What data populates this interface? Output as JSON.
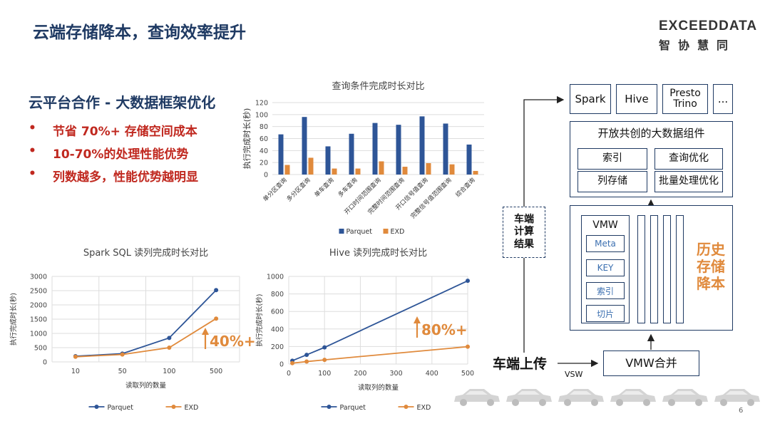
{
  "slide": {
    "title": "云端存储降本，查询效率提升",
    "logo_en": "EXCEEDDATA",
    "logo_cn": "智协慧同",
    "subtitle": "云平台合作 - 大数据框架优化",
    "bullets": [
      "节省 70%+ 存储空间成本",
      "10-70%的处理性能优势",
      "列数越多，性能优势越明显"
    ],
    "bullet_symbol": "•",
    "page_number": "6"
  },
  "chart_data": [
    {
      "type": "bar",
      "title": "查询条件完成时长对比",
      "ylabel": "执行完成时长(秒)",
      "xlabel": "",
      "ylim": [
        0,
        120
      ],
      "yticks": [
        0,
        20,
        40,
        60,
        80,
        100,
        120
      ],
      "categories": [
        "单分区查询",
        "多分区查询",
        "单车查询",
        "多车查询",
        "开口时间范围查询",
        "完整时间范围查询",
        "开口信号值查询",
        "完整信号值范围查询",
        "综合查询"
      ],
      "series": [
        {
          "name": "Parquet",
          "color": "#2e5597",
          "values": [
            67,
            96,
            47,
            68,
            86,
            83,
            97,
            85,
            50
          ]
        },
        {
          "name": "EXD",
          "color": "#e08a3c",
          "values": [
            16,
            28,
            10,
            10,
            22,
            13,
            19,
            17,
            6
          ]
        }
      ],
      "legend": "bottom"
    },
    {
      "type": "line",
      "title": "Spark SQL 读列完成时长对比",
      "ylabel": "执行完成时长(秒)",
      "xlabel": "读取列的数量",
      "x_scale": "category",
      "categories": [
        "10",
        "50",
        "100",
        "500"
      ],
      "ylim": [
        0,
        3000
      ],
      "yticks": [
        0,
        500,
        1000,
        1500,
        2000,
        2500,
        3000
      ],
      "series": [
        {
          "name": "Parquet",
          "color": "#2e5597",
          "values": [
            200,
            290,
            840,
            2520
          ]
        },
        {
          "name": "EXD",
          "color": "#e08a3c",
          "values": [
            180,
            260,
            500,
            1520
          ]
        }
      ],
      "annotation": "40%+",
      "legend": "bottom"
    },
    {
      "type": "line",
      "title": "Hive 读列完成时长对比",
      "ylabel": "执行完成时长(秒)",
      "xlabel": "读取列的数量",
      "x_scale": "linear",
      "xlim": [
        0,
        500
      ],
      "xticks": [
        0,
        100,
        200,
        300,
        400,
        500
      ],
      "ylim": [
        0,
        1000
      ],
      "yticks": [
        0,
        200,
        400,
        600,
        800,
        1000
      ],
      "series": [
        {
          "name": "Parquet",
          "color": "#2e5597",
          "x": [
            10,
            50,
            100,
            500
          ],
          "values": [
            38,
            105,
            190,
            950
          ]
        },
        {
          "name": "EXD",
          "color": "#e08a3c",
          "x": [
            10,
            50,
            100,
            500
          ],
          "values": [
            10,
            28,
            48,
            198
          ]
        }
      ],
      "annotation": "80%+",
      "legend": "bottom"
    }
  ],
  "diagram": {
    "engines": [
      "Spark",
      "Hive",
      "Presto\nTrino",
      "..."
    ],
    "components_title": "开放共创的大数据组件",
    "components": [
      "索引",
      "查询优化",
      "列存储",
      "批量处理优化"
    ],
    "vmw_label": "VMW",
    "vmw_items": [
      "Meta",
      "KEY",
      "索引",
      "切片"
    ],
    "history_label": "历史\n存储\n降本",
    "car_compute": "车端\n计算\n结果",
    "car_upload": "车端上传",
    "vsw": "VSW",
    "vmw_merge": "VMW合并",
    "colors": {
      "navy": "#1f3a63",
      "orange": "#e08a3c",
      "red": "#c0281f",
      "blue": "#2e5597"
    }
  }
}
